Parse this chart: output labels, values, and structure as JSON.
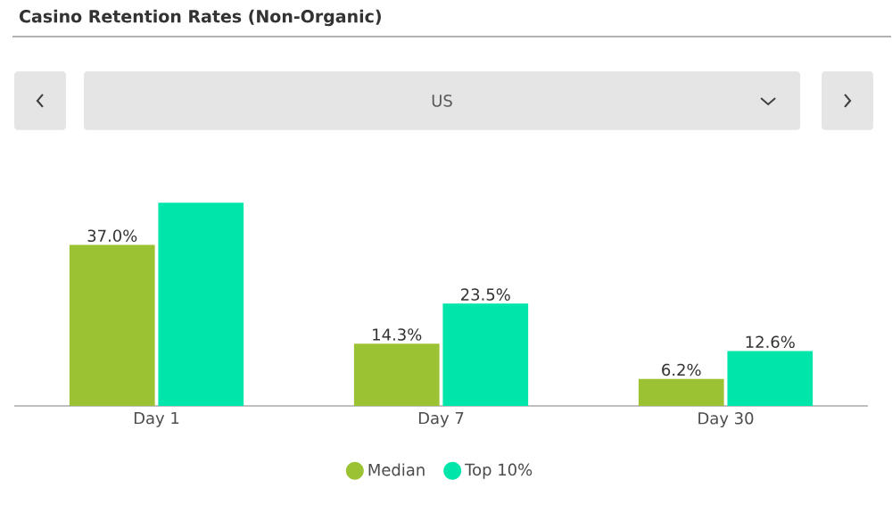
{
  "chart_data": {
    "type": "bar",
    "title": "Casino Retention Rates (Non-Organic)",
    "subtitle": "US",
    "categories": [
      "Day 1",
      "Day 7",
      "Day 30"
    ],
    "series": [
      {
        "name": "Median",
        "color": "#9bc232",
        "values": [
          37.0,
          14.3,
          6.2
        ],
        "value_labels": [
          "37.0%",
          "14.3%",
          "6.2%"
        ]
      },
      {
        "name": "Top 10%",
        "color": "#00e6aa",
        "values": [
          46.7,
          23.5,
          12.6
        ],
        "value_labels": [
          null,
          "23.5%",
          "12.6%"
        ]
      }
    ],
    "legend": "bottom"
  }
}
